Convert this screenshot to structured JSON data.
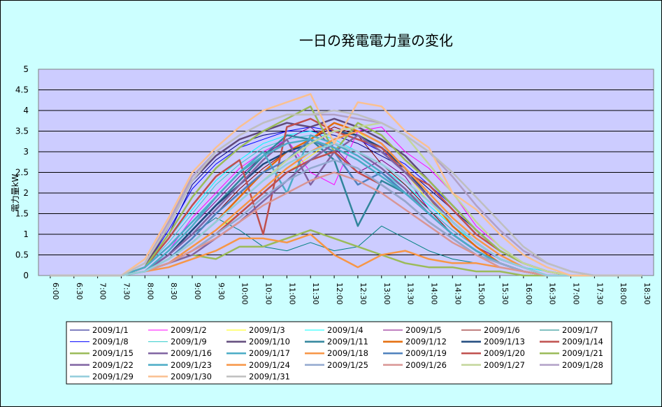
{
  "chart_data": {
    "type": "line",
    "title": "一日の発電電力量の変化",
    "ylabel": "電力量kW",
    "xlabel": "",
    "ylim": [
      0,
      5
    ],
    "yticks": [
      "0",
      "0.5",
      "1",
      "1.5",
      "2",
      "2.5",
      "3",
      "3.5",
      "4",
      "4.5",
      "5"
    ],
    "x": [
      "6:00",
      "6:30",
      "7:00",
      "7:30",
      "8:00",
      "8:30",
      "9:00",
      "9:30",
      "10:00",
      "10:30",
      "11:00",
      "11:30",
      "12:00",
      "12:30",
      "13:00",
      "13:30",
      "14:00",
      "14:30",
      "15:00",
      "15:30",
      "16:00",
      "16:30",
      "17:00",
      "17:30",
      "18:00",
      "18:30"
    ],
    "grid": "horizontal",
    "plot_background": "#ccccff",
    "legend_position": "bottom",
    "series": [
      {
        "name": "2009/1/1",
        "color": "#000080",
        "values": [
          0,
          0,
          0,
          0,
          0.2,
          1.0,
          2.2,
          2.8,
          3.2,
          3.4,
          3.5,
          3.5,
          3.4,
          3.2,
          2.9,
          2.6,
          2.1,
          1.6,
          1.1,
          0.6,
          0.3,
          0.1,
          0,
          0,
          0,
          0
        ]
      },
      {
        "name": "2009/1/2",
        "color": "#ff00ff",
        "values": [
          0,
          0,
          0,
          0,
          0.1,
          0.6,
          1.4,
          2.0,
          2.6,
          3.0,
          3.3,
          2.5,
          2.2,
          3.5,
          3.6,
          3.0,
          2.6,
          2.0,
          1.2,
          0.7,
          0.3,
          0.1,
          0,
          0,
          0,
          0
        ]
      },
      {
        "name": "2009/1/3",
        "color": "#ffff00",
        "values": [
          0,
          0,
          0,
          0,
          0.1,
          0.3,
          0.7,
          1.1,
          1.5,
          2.0,
          2.5,
          2.9,
          3.3,
          3.5,
          3.0,
          2.5,
          1.8,
          1.2,
          0.7,
          0.3,
          0.1,
          0,
          0,
          0,
          0,
          0
        ]
      },
      {
        "name": "2009/1/4",
        "color": "#00ffff",
        "values": [
          0,
          0,
          0,
          0,
          0.2,
          0.9,
          1.6,
          2.3,
          2.8,
          3.2,
          3.4,
          3.5,
          3.3,
          3.0,
          2.6,
          2.2,
          1.7,
          1.2,
          0.8,
          0.4,
          0.2,
          0.1,
          0,
          0,
          0,
          0
        ]
      },
      {
        "name": "2009/1/5",
        "color": "#800080",
        "values": [
          0,
          0,
          0,
          0,
          0.1,
          0.6,
          1.2,
          1.8,
          2.4,
          2.9,
          3.3,
          3.6,
          3.1,
          2.5,
          2.8,
          2.4,
          1.6,
          1.1,
          0.7,
          0.4,
          0.2,
          0,
          0,
          0,
          0,
          0
        ]
      },
      {
        "name": "2009/1/6",
        "color": "#800000",
        "values": [
          0,
          0,
          0,
          0,
          0.1,
          0.4,
          0.9,
          1.5,
          2.1,
          2.6,
          3.0,
          3.3,
          3.6,
          3.4,
          2.7,
          2.2,
          1.6,
          1.0,
          0.6,
          0.3,
          0.1,
          0,
          0,
          0,
          0,
          0
        ]
      },
      {
        "name": "2009/1/7",
        "color": "#008080",
        "values": [
          0,
          0,
          0,
          0,
          0.1,
          0.5,
          1.0,
          1.4,
          1.1,
          0.7,
          0.6,
          0.8,
          0.6,
          0.7,
          1.2,
          0.9,
          0.6,
          0.4,
          0.3,
          0.2,
          0.1,
          0,
          0,
          0,
          0,
          0
        ]
      },
      {
        "name": "2009/1/8",
        "color": "#0000ff",
        "values": [
          0,
          0,
          0,
          0,
          0.2,
          1.1,
          2.1,
          2.7,
          3.1,
          3.3,
          3.5,
          3.6,
          3.5,
          3.3,
          3.0,
          2.7,
          2.2,
          1.7,
          1.1,
          0.6,
          0.3,
          0.1,
          0,
          0,
          0,
          0
        ]
      },
      {
        "name": "2009/1/9",
        "color": "#33cccc",
        "values": [
          0,
          0,
          0,
          0,
          0.2,
          0.8,
          1.5,
          2.2,
          2.7,
          3.1,
          3.3,
          3.4,
          3.2,
          2.9,
          2.5,
          2.1,
          1.6,
          1.1,
          0.7,
          0.3,
          0.1,
          0,
          0,
          0,
          0,
          0
        ]
      },
      {
        "name": "2009/1/10",
        "color": "#604a7b",
        "values": [
          0,
          0,
          0,
          0,
          0.2,
          1.2,
          2.3,
          2.9,
          3.3,
          3.5,
          3.7,
          3.6,
          3.8,
          3.6,
          3.3,
          2.9,
          2.3,
          1.7,
          1.1,
          0.6,
          0.3,
          0.1,
          0,
          0,
          0,
          0
        ]
      },
      {
        "name": "2009/1/11",
        "color": "#31859c",
        "values": [
          0,
          0,
          0,
          0,
          0.1,
          0.5,
          1.1,
          1.7,
          2.3,
          2.9,
          3.4,
          3.3,
          2.8,
          1.2,
          2.3,
          2.0,
          1.5,
          1.0,
          0.6,
          0.3,
          0.1,
          0,
          0,
          0,
          0,
          0
        ]
      },
      {
        "name": "2009/1/12",
        "color": "#e46c0a",
        "values": [
          0,
          0,
          0,
          0,
          0.1,
          0.4,
          0.8,
          1.3,
          1.9,
          2.5,
          3.0,
          3.3,
          3.7,
          3.5,
          3.2,
          2.6,
          1.9,
          1.2,
          0.7,
          0.3,
          0.1,
          0,
          0,
          0,
          0,
          0
        ]
      },
      {
        "name": "2009/1/13",
        "color": "#1f497d",
        "values": [
          0,
          0,
          0,
          0,
          0.1,
          0.5,
          1.1,
          1.7,
          2.2,
          2.7,
          3.0,
          3.2,
          3.5,
          3.4,
          3.1,
          2.6,
          1.9,
          1.3,
          0.8,
          0.4,
          0.2,
          0,
          0,
          0,
          0,
          0
        ]
      },
      {
        "name": "2009/1/14",
        "color": "#c0504d",
        "values": [
          0,
          0,
          0,
          0,
          0.2,
          0.9,
          1.7,
          2.4,
          2.8,
          1.0,
          3.6,
          3.8,
          3.5,
          3.3,
          3.1,
          2.5,
          2.2,
          1.6,
          1.0,
          0.6,
          0.3,
          0.1,
          0,
          0,
          0,
          0
        ]
      },
      {
        "name": "2009/1/15",
        "color": "#9bbb59",
        "values": [
          0,
          0,
          0,
          0,
          0.2,
          1.0,
          1.9,
          2.6,
          3.1,
          3.5,
          3.8,
          4.1,
          3.0,
          3.7,
          3.4,
          2.8,
          2.3,
          1.7,
          1.1,
          0.6,
          0.3,
          0.1,
          0,
          0,
          0,
          0
        ]
      },
      {
        "name": "2009/1/16",
        "color": "#8064a2",
        "values": [
          0,
          0,
          0,
          0,
          0.1,
          0.5,
          1.0,
          1.6,
          2.2,
          2.8,
          3.3,
          2.2,
          3.0,
          3.4,
          3.0,
          2.5,
          1.9,
          1.3,
          0.8,
          0.4,
          0.2,
          0,
          0,
          0,
          0,
          0
        ]
      },
      {
        "name": "2009/1/17",
        "color": "#4bacc6",
        "values": [
          0,
          0,
          0,
          0,
          0.1,
          0.6,
          1.2,
          1.9,
          2.5,
          3.0,
          2.0,
          3.4,
          3.2,
          2.9,
          2.5,
          2.0,
          1.5,
          1.0,
          0.6,
          0.3,
          0.1,
          0,
          0,
          0,
          0,
          0
        ]
      },
      {
        "name": "2009/1/18",
        "color": "#f79646",
        "values": [
          0,
          0,
          0,
          0,
          0.1,
          0.3,
          0.7,
          1.1,
          1.6,
          2.1,
          2.6,
          3.0,
          3.3,
          3.5,
          3.2,
          2.6,
          2.0,
          1.4,
          0.9,
          0.5,
          0.2,
          0,
          0,
          0,
          0,
          0
        ]
      },
      {
        "name": "2009/1/19",
        "color": "#4f81bd",
        "values": [
          0,
          0,
          0,
          0,
          0.1,
          0.4,
          0.9,
          1.5,
          2.0,
          2.5,
          2.8,
          3.3,
          3.0,
          2.2,
          2.5,
          2.0,
          1.5,
          1.0,
          0.6,
          0.3,
          0.1,
          0,
          0,
          0,
          0,
          0
        ]
      },
      {
        "name": "2009/1/20",
        "color": "#c0504d",
        "values": [
          0,
          0,
          0,
          0,
          0.1,
          0.3,
          0.6,
          1.0,
          1.5,
          2.0,
          2.5,
          2.8,
          3.0,
          2.5,
          2.2,
          1.8,
          1.3,
          0.9,
          0.5,
          0.3,
          0.1,
          0,
          0,
          0,
          0,
          0
        ]
      },
      {
        "name": "2009/1/21",
        "color": "#9bbb59",
        "values": [
          0,
          0,
          0,
          0,
          0.1,
          0.3,
          0.5,
          0.4,
          0.7,
          0.7,
          0.9,
          1.1,
          0.9,
          0.7,
          0.5,
          0.3,
          0.2,
          0.2,
          0.1,
          0.1,
          0,
          0,
          0,
          0,
          0,
          0
        ]
      },
      {
        "name": "2009/1/22",
        "color": "#8064a2",
        "values": [
          0,
          0,
          0,
          0,
          0.1,
          0.3,
          0.5,
          0.9,
          1.3,
          1.8,
          2.3,
          2.8,
          3.2,
          3.0,
          2.6,
          2.1,
          1.5,
          1.0,
          0.6,
          0.3,
          0.1,
          0,
          0,
          0,
          0,
          0
        ]
      },
      {
        "name": "2009/1/23",
        "color": "#4bacc6",
        "values": [
          0,
          0,
          0,
          0,
          0.2,
          0.7,
          1.3,
          1.9,
          2.5,
          2.9,
          3.2,
          3.3,
          3.1,
          2.8,
          2.4,
          2.0,
          1.5,
          1.0,
          0.6,
          0.3,
          0.1,
          0,
          0,
          0,
          0,
          0
        ]
      },
      {
        "name": "2009/1/24",
        "color": "#f79646",
        "values": [
          0,
          0,
          0,
          0,
          0.1,
          0.2,
          0.4,
          0.6,
          0.9,
          0.9,
          0.8,
          1.0,
          0.5,
          0.2,
          0.5,
          0.6,
          0.4,
          0.3,
          0.3,
          0.2,
          0.1,
          0,
          0,
          0,
          0,
          0
        ]
      },
      {
        "name": "2009/1/25",
        "color": "#93a9cf",
        "values": [
          0,
          0,
          0,
          0,
          0.1,
          0.3,
          0.6,
          1.0,
          1.4,
          1.9,
          2.3,
          2.6,
          2.8,
          2.6,
          2.2,
          1.8,
          1.3,
          0.9,
          0.5,
          0.3,
          0.1,
          0,
          0,
          0,
          0,
          0
        ]
      },
      {
        "name": "2009/1/26",
        "color": "#d99694",
        "values": [
          0,
          0,
          0,
          0,
          0.1,
          0.3,
          0.6,
          0.9,
          1.3,
          1.7,
          2.0,
          2.3,
          2.5,
          2.3,
          2.0,
          1.6,
          1.2,
          0.8,
          0.5,
          0.2,
          0.1,
          0,
          0,
          0,
          0,
          0
        ]
      },
      {
        "name": "2009/1/27",
        "color": "#c3d69b",
        "values": [
          0,
          0,
          0,
          0,
          0.1,
          0.4,
          0.8,
          1.3,
          1.8,
          2.3,
          2.8,
          3.2,
          3.5,
          3.6,
          3.7,
          3.4,
          2.7,
          2.0,
          1.3,
          0.7,
          0.3,
          0.1,
          0,
          0,
          0,
          0
        ]
      },
      {
        "name": "2009/1/28",
        "color": "#b2a1c7",
        "values": [
          0,
          0,
          0,
          0,
          0.3,
          1.3,
          2.4,
          3.0,
          3.4,
          3.7,
          3.9,
          3.9,
          3.9,
          3.8,
          3.7,
          3.4,
          3.0,
          2.4,
          1.7,
          1.1,
          0.6,
          0.3,
          0.1,
          0,
          0,
          0
        ]
      },
      {
        "name": "2009/1/29",
        "color": "#92cddc",
        "values": [
          0,
          0,
          0,
          0,
          0.1,
          0.4,
          0.8,
          1.3,
          1.8,
          2.3,
          2.7,
          3.0,
          3.2,
          3.0,
          2.7,
          2.3,
          1.8,
          1.3,
          0.8,
          0.4,
          0.2,
          0,
          0,
          0,
          0,
          0
        ]
      },
      {
        "name": "2009/1/30",
        "color": "#fac090",
        "values": [
          0,
          0,
          0,
          0,
          0.4,
          1.4,
          2.5,
          3.1,
          3.6,
          4.0,
          4.2,
          4.4,
          3.2,
          4.2,
          4.1,
          3.5,
          3.1,
          2.0,
          1.6,
          1.0,
          0.5,
          0.2,
          0,
          0,
          0,
          0
        ]
      },
      {
        "name": "2009/1/31",
        "color": "#bfbfbf",
        "values": [
          0,
          0,
          0,
          0,
          0.3,
          1.2,
          2.3,
          3.0,
          3.4,
          3.7,
          3.9,
          3.9,
          4.0,
          3.9,
          3.7,
          3.4,
          3.0,
          2.5,
          1.9,
          1.3,
          0.7,
          0.3,
          0.1,
          0,
          0,
          0
        ]
      }
    ]
  }
}
